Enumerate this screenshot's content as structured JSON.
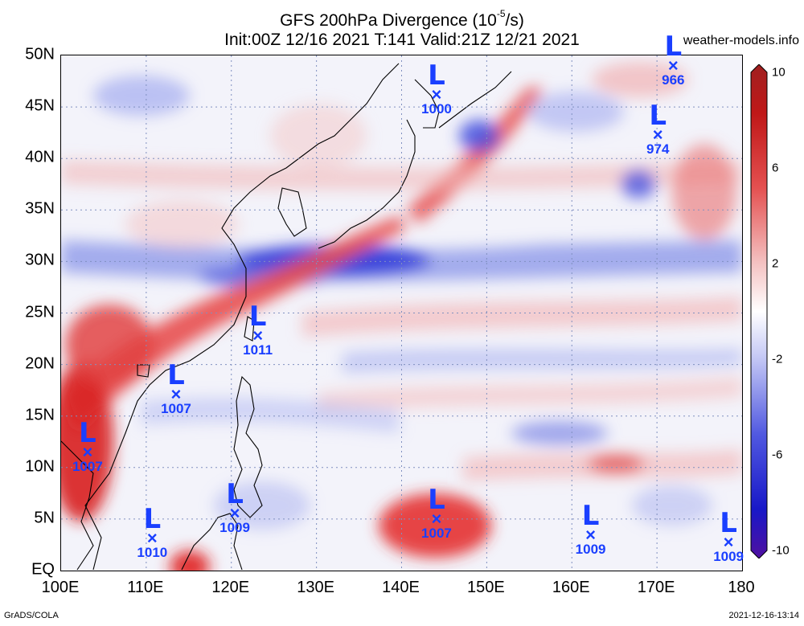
{
  "title": {
    "line1_prefix": "GFS 200hPa Divergence (10",
    "line1_exp": "-5",
    "line1_suffix": "/s)",
    "line2": "Init:00Z 12/16 2021 T:141 Valid:21Z 12/21 2021"
  },
  "credit": "weather-models.info",
  "footer": {
    "left": "GrADS/COLA",
    "right": "2021-12-16-13:14"
  },
  "map": {
    "lon_range": [
      100,
      180
    ],
    "lat_range": [
      0,
      50
    ],
    "lat_labels": [
      "EQ",
      "5N",
      "10N",
      "15N",
      "20N",
      "25N",
      "30N",
      "35N",
      "40N",
      "45N",
      "50N"
    ],
    "lon_labels": [
      "100E",
      "110E",
      "120E",
      "130E",
      "140E",
      "150E",
      "160E",
      "170E",
      "180"
    ],
    "grid": "dotted"
  },
  "colorbar": {
    "range": [
      -10,
      10
    ],
    "labels": [
      "10",
      "6",
      "2",
      "-2",
      "-6",
      "-10"
    ],
    "colors": {
      "max": "#c01010",
      "mid": "#ffffff",
      "min": "#1010d0",
      "end_low": "#5010a0",
      "end_high": "#a02020"
    }
  },
  "lows": [
    {
      "pressure": "966",
      "lon": 172.0,
      "lat": 48.8
    },
    {
      "pressure": "1000",
      "lon": 144.2,
      "lat": 46.0
    },
    {
      "pressure": "974",
      "lon": 170.2,
      "lat": 42.1
    },
    {
      "pressure": "1011",
      "lon": 123.2,
      "lat": 22.6
    },
    {
      "pressure": "1007",
      "lon": 113.6,
      "lat": 16.9
    },
    {
      "pressure": "1007",
      "lon": 103.2,
      "lat": 11.3
    },
    {
      "pressure": "1009",
      "lon": 120.5,
      "lat": 5.4
    },
    {
      "pressure": "1007",
      "lon": 144.2,
      "lat": 4.8
    },
    {
      "pressure": "1010",
      "lon": 110.8,
      "lat": 3.0
    },
    {
      "pressure": "1009",
      "lon": 162.3,
      "lat": 3.3
    },
    {
      "pressure": "1009",
      "lon": 178.5,
      "lat": 2.6
    }
  ],
  "low_symbol": {
    "letter": "L",
    "mark": "×"
  }
}
